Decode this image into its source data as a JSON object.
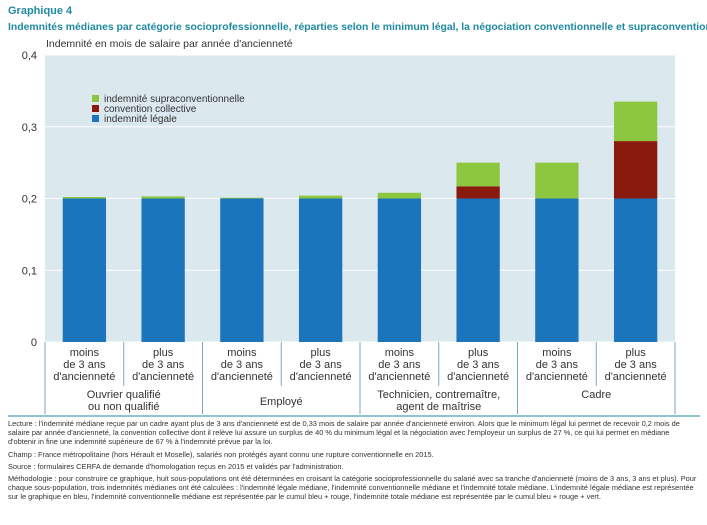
{
  "chart_data": {
    "type": "stacked_bar",
    "title": "Graphique 4",
    "subtitle": "Indemnités médianes par catégorie socioprofessionnelle, réparties selon le minimum légal, la négociation conventionnelle et supraconventionnelle du salarié",
    "y_label": "Indemnité en mois de salaire par année d'ancienneté",
    "categories": [
      "moins\nde 3 ans\nd'ancienneté",
      "plus\nde 3 ans\nd'ancienneté",
      "moins\nde 3 ans\nd'ancienneté",
      "plus\nde 3 ans\nd'ancienneté",
      "moins\nde 3 ans\nd'ancienneté",
      "plus\nde 3 ans\nd'ancienneté",
      "moins\nde 3 ans\nd'ancienneté",
      "plus\nde 3 ans\nd'ancienneté"
    ],
    "groups": [
      "Ouvrier qualifié\nou non qualifié",
      "Employé",
      "Technicien, contremaître,\nagent de maîtrise",
      "Cadre"
    ],
    "series": [
      {
        "name": "indemnité légale",
        "color": "#1b75bc",
        "values": [
          0.2,
          0.2,
          0.2,
          0.2,
          0.2,
          0.2,
          0.2,
          0.2
        ]
      },
      {
        "name": "convention collective",
        "color": "#8b1a0e",
        "values": [
          0,
          0,
          0,
          0,
          0,
          0.017,
          0,
          0.08
        ]
      },
      {
        "name": "indemnité supraconventionnelle",
        "color": "#8dc63f",
        "values": [
          0.002,
          0.003,
          0.001,
          0.004,
          0.008,
          0.033,
          0.05,
          0.055
        ]
      }
    ],
    "ylim": [
      0,
      0.4
    ],
    "yticks": [
      0,
      {
        "value": 0.1,
        "label": "0,1"
      },
      {
        "value": 0.2,
        "label": "0,2"
      },
      {
        "value": 0.3,
        "label": "0,3"
      },
      {
        "value": 0.4,
        "label": "0,4"
      }
    ],
    "grid": true,
    "legend": "top-left"
  },
  "notes": [
    "Lecture : l'indemnité médiane reçue par un cadre ayant plus de 3 ans d'ancienneté est de 0,33 mois de salaire par année d'ancienneté environ. Alors que le minimum légal lui permet de recevoir 0,2 mois de salaire par année d'ancienneté, la convention collective dont il relève lui assure un surplus de 40 % du minimum légal et la négociation avec l'employeur un surplus de 27 %, ce qui lui permet en médiane d'obtenir in fine une indemnité supérieure de 67 % à l'indemnité prévue par la loi.",
    "Champ : France métropolitaine (hors Hérault et Moselle), salariés non protégés ayant connu une rupture conventionnelle en 2015.",
    "Source : formulaires CERFA de demande d'homologation reçus en 2015 et validés par l'administration.",
    "Méthodologie : pour construire ce graphique, huit sous-populations ont été déterminées en croisant la catégorie socioprofessionnelle du salarié avec sa tranche d'ancienneté (moins de 3 ans, 3 ans et plus). Pour chaque sous-population, trois indemnités médianes ont été calculées : l'indemnité légale médiane, l'indemnité conventionnelle médiane et l'indemnité totale médiane. L'indemnité légale médiane est représentée sur le graphique en bleu, l'indemnité conventionnelle médiane est représentée par le cumul bleu + rouge, l'indemnité totale médiane est représentée par le cumul bleu + rouge + vert."
  ]
}
